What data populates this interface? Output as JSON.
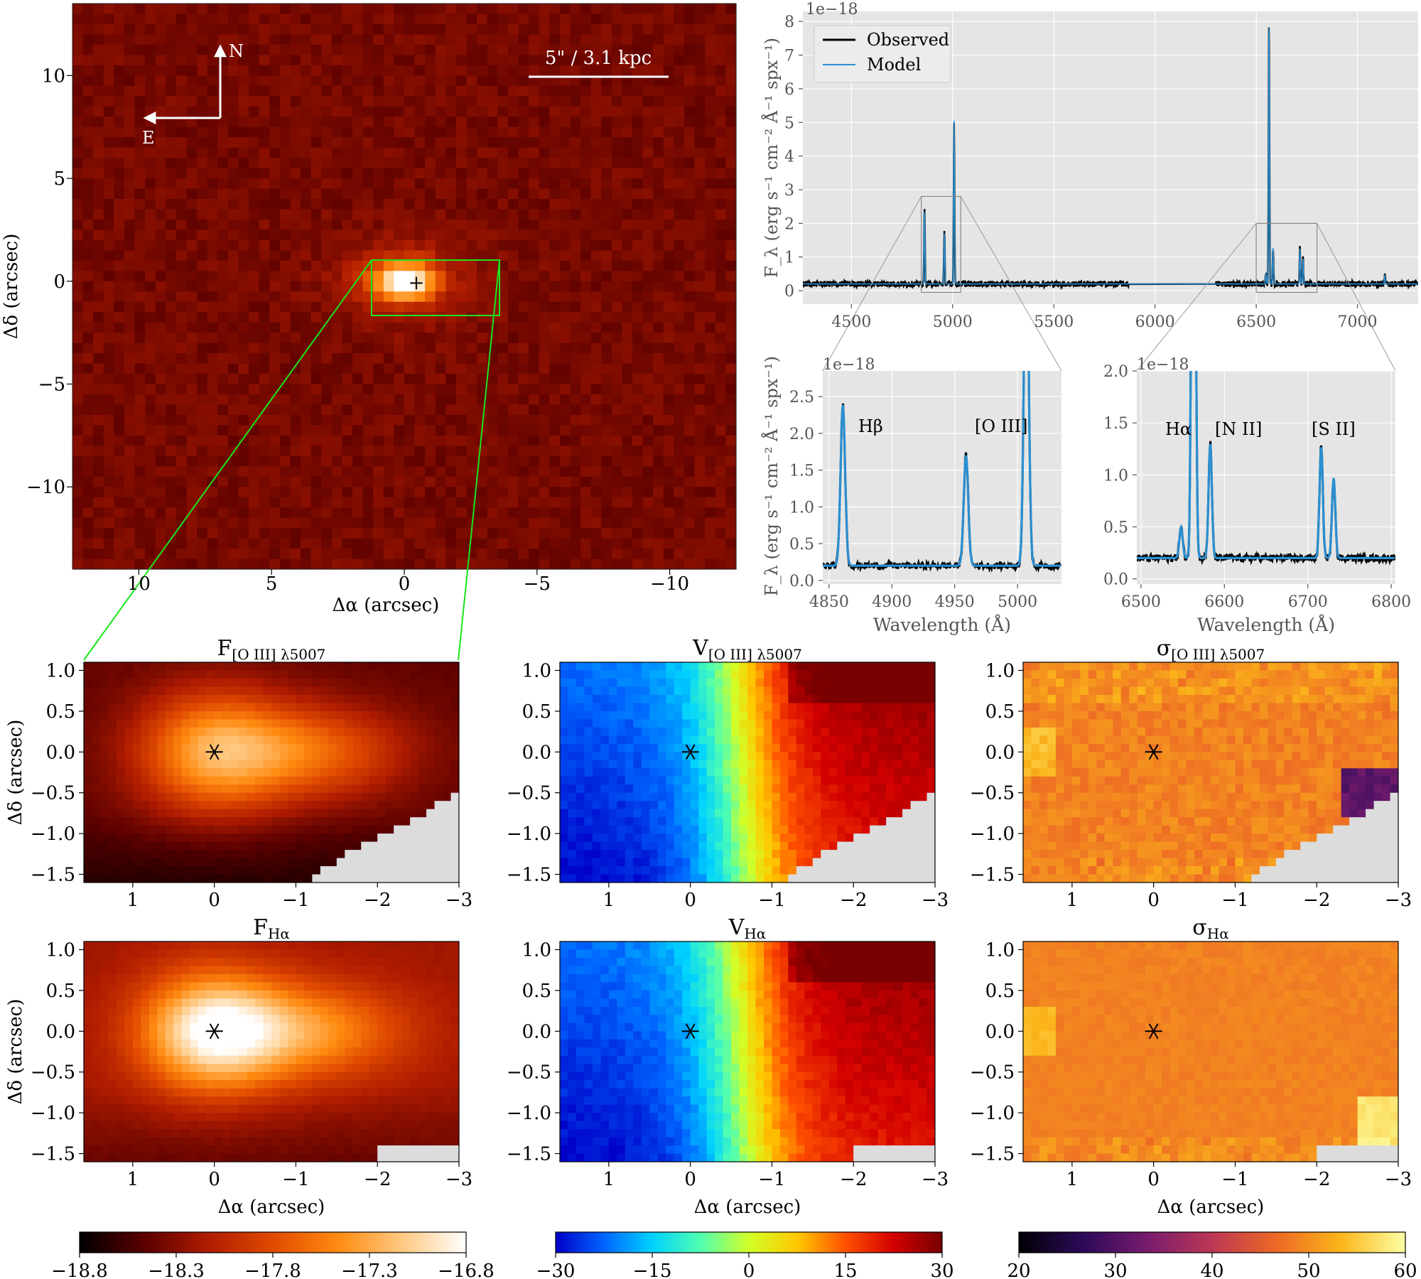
{
  "chart_data": [
    {
      "type": "heatmap",
      "panel": "image",
      "x": [
        -13,
        12
      ],
      "y": [
        -14,
        13.5
      ],
      "xlabel": "Δα (arcsec)",
      "ylabel": "Δδ (arcsec)",
      "xticks": [
        10,
        5,
        0,
        -5,
        -10
      ],
      "yticks": [
        10,
        5,
        0,
        -5,
        -10
      ],
      "xlim": [
        12.5,
        -12.5
      ],
      "ylim": [
        -14,
        13.5
      ],
      "compass": {
        "north": "N",
        "east": "E"
      },
      "scalebar": {
        "label": "5\" / 3.1 kpc",
        "length_arcsec": 5
      },
      "zoom_box": {
        "x": [
          1.6,
          -3.0
        ],
        "y": [
          -1.6,
          1.1
        ]
      },
      "source": {
        "x": 0,
        "y": 0,
        "marker": "+"
      }
    },
    {
      "type": "line",
      "panel": "spectrum",
      "x_range": [
        4380,
        7180
      ],
      "xticks": [
        4500,
        5000,
        5500,
        6000,
        6500,
        7000
      ],
      "ylim": [
        -0.4,
        8.3
      ],
      "yticks": [
        0,
        1,
        2,
        3,
        4,
        5,
        6,
        7,
        8
      ],
      "ylabel": "F_λ (erg s⁻¹ cm⁻² Å⁻¹ spx⁻¹)",
      "offset_label": "1e−18",
      "legend": {
        "position": "top-left",
        "entries": [
          "Observed",
          "Model"
        ]
      },
      "continuum": 0.2,
      "gap": [
        5870,
        6300
      ],
      "lines": [
        {
          "name": "Hβ",
          "wavelength": 4861,
          "peak": 2.4
        },
        {
          "name": "[O III]",
          "wavelength": 4959,
          "peak": 1.7
        },
        {
          "name": "[O III]",
          "wavelength": 5007,
          "peak": 5.05
        },
        {
          "name": "[N II]",
          "wavelength": 6548,
          "peak": 0.5
        },
        {
          "name": "Hα",
          "wavelength": 6563,
          "peak": 8.0
        },
        {
          "name": "[N II]",
          "wavelength": 6583,
          "peak": 1.3
        },
        {
          "name": "[S II]",
          "wavelength": 6716,
          "peak": 1.27
        },
        {
          "name": "[S II]",
          "wavelength": 6731,
          "peak": 0.97
        },
        {
          "name": "",
          "wavelength": 7135,
          "peak": 0.45
        }
      ],
      "zoom_regions": [
        [
          4845,
          5040
        ],
        [
          6500,
          6800
        ]
      ]
    },
    {
      "type": "line",
      "panel": "zoom-hbeta-oiii",
      "xlim": [
        4845,
        5035
      ],
      "xticks": [
        4850,
        4900,
        4950,
        5000
      ],
      "ylim": [
        -0.05,
        2.85
      ],
      "yticks": [
        0.0,
        0.5,
        1.0,
        1.5,
        2.0,
        2.5
      ],
      "xlabel": "Wavelength (Å)",
      "ylabel": "F_λ (erg s⁻¹ cm⁻² Å⁻¹ spx⁻¹)",
      "offset_label": "1e−18",
      "annotations": [
        "Hβ",
        "[O III]"
      ]
    },
    {
      "type": "line",
      "panel": "zoom-halpha",
      "xlim": [
        6495,
        6805
      ],
      "xticks": [
        6500,
        6600,
        6700,
        6800
      ],
      "ylim": [
        -0.05,
        2.0
      ],
      "yticks": [
        0.0,
        0.5,
        1.0,
        1.5,
        2.0
      ],
      "xlabel": "Wavelength (Å)",
      "offset_label": "1e−18",
      "annotations": [
        "Hα",
        "[N II]",
        "[S II]"
      ]
    },
    {
      "type": "heatmap",
      "panel": "map",
      "title": "F[O III] λ5007",
      "title_main": "F",
      "title_sub": "[O III] λ5007",
      "quantity": "flux",
      "xlim": [
        1.6,
        -3.0
      ],
      "ylim": [
        -1.6,
        1.1
      ],
      "xticks": [
        1,
        0,
        -1,
        -2,
        -3
      ],
      "yticks": [
        1.0,
        0.5,
        0.0,
        -0.5,
        -1.0,
        -1.5
      ],
      "ylabel": "Δδ (arcsec)",
      "xlabel": ""
    },
    {
      "type": "heatmap",
      "panel": "map",
      "title": "V[O III] λ5007",
      "title_main": "V",
      "title_sub": "[O III] λ5007",
      "quantity": "velocity",
      "xlim": [
        1.6,
        -3.0
      ],
      "ylim": [
        -1.6,
        1.1
      ],
      "xticks": [
        1,
        0,
        -1,
        -2,
        -3
      ],
      "yticks": [
        1.0,
        0.5,
        0.0,
        -0.5,
        -1.0,
        -1.5
      ],
      "ylabel": "",
      "xlabel": ""
    },
    {
      "type": "heatmap",
      "panel": "map",
      "title": "σ[O III] λ5007",
      "title_main": "σ",
      "title_sub": "[O III] λ5007",
      "quantity": "dispersion",
      "xlim": [
        1.6,
        -3.0
      ],
      "ylim": [
        -1.6,
        1.1
      ],
      "xticks": [
        1,
        0,
        -1,
        -2,
        -3
      ],
      "yticks": [
        1.0,
        0.5,
        0.0,
        -0.5,
        -1.0,
        -1.5
      ],
      "ylabel": "",
      "xlabel": ""
    },
    {
      "type": "heatmap",
      "panel": "map",
      "title": "FHα",
      "title_main": "F",
      "title_sub": "Hα",
      "quantity": "flux",
      "xlim": [
        1.6,
        -3.0
      ],
      "ylim": [
        -1.6,
        1.1
      ],
      "xticks": [
        1,
        0,
        -1,
        -2,
        -3
      ],
      "yticks": [
        1.0,
        0.5,
        0.0,
        -0.5,
        -1.0,
        -1.5
      ],
      "ylabel": "Δδ (arcsec)",
      "xlabel": "Δα  (arcsec)"
    },
    {
      "type": "heatmap",
      "panel": "map",
      "title": "VHα",
      "title_main": "V",
      "title_sub": "Hα",
      "quantity": "velocity",
      "xlim": [
        1.6,
        -3.0
      ],
      "ylim": [
        -1.6,
        1.1
      ],
      "xticks": [
        1,
        0,
        -1,
        -2,
        -3
      ],
      "yticks": [
        1.0,
        0.5,
        0.0,
        -0.5,
        -1.0,
        -1.5
      ],
      "ylabel": "",
      "xlabel": "Δα  (arcsec)"
    },
    {
      "type": "heatmap",
      "panel": "map",
      "title": "σHα",
      "title_main": "σ",
      "title_sub": "Hα",
      "quantity": "dispersion",
      "xlim": [
        1.6,
        -3.0
      ],
      "ylim": [
        -1.6,
        1.1
      ],
      "xticks": [
        1,
        0,
        -1,
        -2,
        -3
      ],
      "yticks": [
        1.0,
        0.5,
        0.0,
        -0.5,
        -1.0,
        -1.5
      ],
      "ylabel": "",
      "xlabel": "Δα  (arcsec)"
    },
    {
      "type": "colorbar",
      "quantity": "flux",
      "range": [
        -18.8,
        -16.8
      ],
      "ticks": [
        "−18.8",
        "−18.3",
        "−17.8",
        "−17.3",
        "−16.8"
      ],
      "colors": [
        "#000000",
        "#5a0000",
        "#b01c00",
        "#e04a00",
        "#ff8a10",
        "#ffc880",
        "#ffffff"
      ]
    },
    {
      "type": "colorbar",
      "quantity": "velocity",
      "range": [
        -30,
        30
      ],
      "ticks": [
        "−30",
        "−15",
        "0",
        "15",
        "30"
      ],
      "colors": [
        "#0000c8",
        "#0064ff",
        "#00d2ff",
        "#50ffb0",
        "#d2ff28",
        "#ffc800",
        "#ff5000",
        "#d20000",
        "#780000"
      ]
    },
    {
      "type": "colorbar",
      "quantity": "dispersion",
      "range": [
        20,
        60
      ],
      "ticks": [
        "20",
        "30",
        "40",
        "50",
        "60"
      ],
      "colors": [
        "#000004",
        "#2d0a5a",
        "#781c6d",
        "#bc3754",
        "#ed6925",
        "#fbb61a",
        "#fcffa4"
      ]
    }
  ]
}
